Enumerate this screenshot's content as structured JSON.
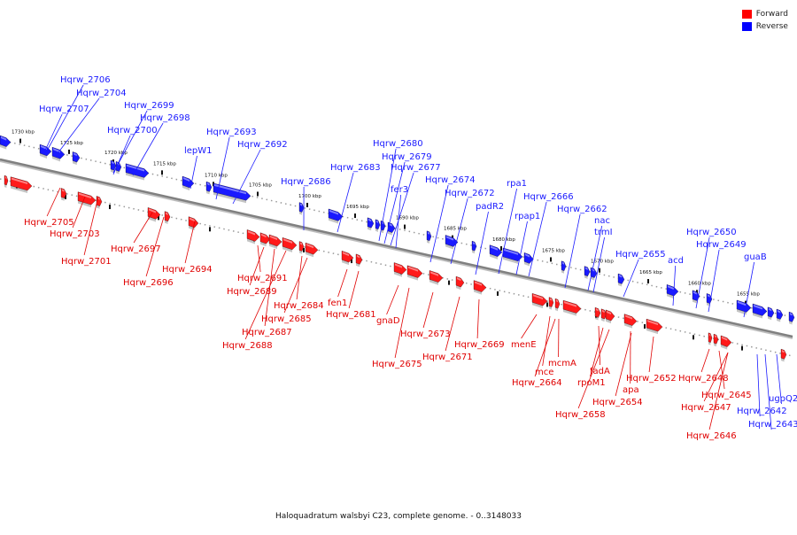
{
  "legend": [
    {
      "label": "Forward",
      "color": "#ff0000"
    },
    {
      "label": "Reverse",
      "color": "#0000ff"
    }
  ],
  "caption": "Haloquadratum walsbyi C23, complete genome. - 0..3148033",
  "colors": {
    "forward": "#ff1a1a",
    "reverse": "#1a1aff",
    "backbone": "#808080"
  },
  "ruler_ticks": [
    "1730 kbp",
    "1725 kbp",
    "1720 kbp",
    "1715 kbp",
    "1710 kbp",
    "1705 kbp",
    "1700 kbp",
    "1695 kbp",
    "1690 kbp",
    "1685 kbp",
    "1680 kbp",
    "1675 kbp",
    "1670 kbp",
    "1665 kbp",
    "1660 kbp",
    "1655 kbp"
  ],
  "reverse_labels": [
    "Hqrw_2706",
    "Hqrw_2704",
    "Hqrw_2707",
    "Hqrw_2699",
    "Hqrw_2698",
    "Hqrw_2700",
    "lepW1",
    "Hqrw_2693",
    "Hqrw_2692",
    "Hqrw_2686",
    "Hqrw_2683",
    "Hqrw_2680",
    "Hqrw_2679",
    "Hqrw_2677",
    "fer3",
    "Hqrw_2674",
    "Hqrw_2672",
    "padR2",
    "rpa1",
    "rpap1",
    "Hqrw_2666",
    "Hqrw_2662",
    "nac",
    "trmI",
    "Hqrw_2655",
    "acd",
    "Hqrw_2650",
    "Hqrw_2649",
    "guaB",
    "ugpQ2",
    "Hqrw_2642",
    "Hqrw_2643"
  ],
  "forward_labels": [
    "Hqrw_2705",
    "Hqrw_2703",
    "Hqrw_2701",
    "Hqrw_2697",
    "Hqrw_2696",
    "Hqrw_2694",
    "Hqrw_2691",
    "Hqrw_2689",
    "Hqrw_2687",
    "Hqrw_2688",
    "Hqrw_2684",
    "Hqrw_2685",
    "fen1",
    "Hqrw_2681",
    "gnaD",
    "Hqrw_2675",
    "Hqrw_2673",
    "Hqrw_2671",
    "Hqrw_2669",
    "menE",
    "mce",
    "mcmA",
    "Hqrw_2664",
    "fadA",
    "rpoM1",
    "Hqrw_2658",
    "apa",
    "Hqrw_2654",
    "Hqrw_2652",
    "Hqrw_2648",
    "Hqrw_2645",
    "Hqrw_2647",
    "Hqrw_2646"
  ]
}
